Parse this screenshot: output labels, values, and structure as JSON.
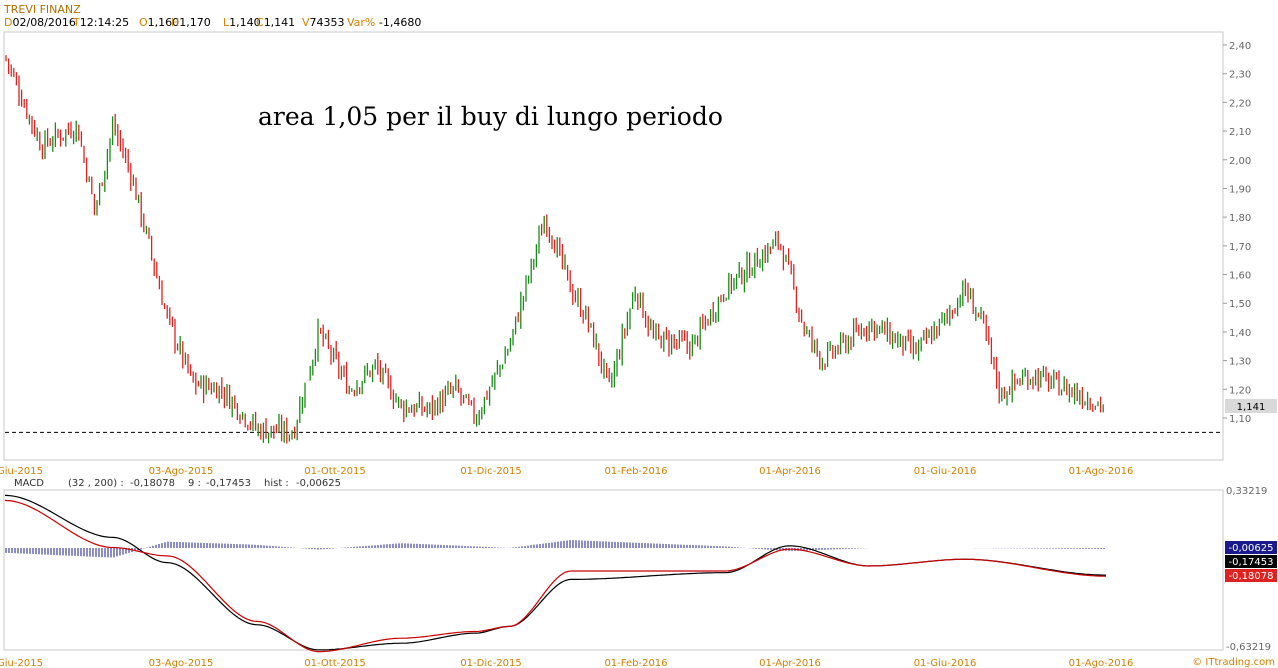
{
  "header": {
    "instrument": "TREVI FINANZ",
    "fields": [
      {
        "k": "D",
        "v": "02/08/2016"
      },
      {
        "k": "T",
        "v": "12:14:25"
      },
      {
        "k": "O",
        "v": "1,160"
      },
      {
        "k": "H",
        "v": "1,170"
      },
      {
        "k": "L",
        "v": "1,140"
      },
      {
        "k": "C",
        "v": "1,141"
      },
      {
        "k": "V",
        "v": "74353"
      },
      {
        "k": "Var%",
        "v": "-1,4680"
      }
    ]
  },
  "annotation": "area 1,05 per il buy di lungo periodo",
  "colors": {
    "up": "#1a8a1a",
    "down": "#dd2222",
    "histogram": "#1a1a8c",
    "macd_line": "#cc0000",
    "signal_line": "#000000",
    "axis_date": "#d08000"
  },
  "x_axis_labels": [
    "-Giu-2015",
    "03-Ago-2015",
    "01-Ott-2015",
    "01-Dic-2015",
    "01-Feb-2016",
    "01-Apr-2016",
    "01-Giu-2016",
    "01-Ago-2016"
  ],
  "price_axis_ticks": [
    "2,40",
    "2,30",
    "2,20",
    "2,10",
    "2,00",
    "1,90",
    "1,80",
    "1,70",
    "1,60",
    "1,50",
    "1,40",
    "1,30",
    "1,20",
    "1,10"
  ],
  "last_price_label": "1,141",
  "support_line_level": 1.05,
  "macd_header": {
    "name": "MACD",
    "params": "(32 , 200) :",
    "macd_value": "-0,18078",
    "signal_label": "9 :",
    "signal_value": "-0,17453",
    "hist_label": "hist :",
    "hist_value": "-0,00625"
  },
  "macd_axis": {
    "top": "0,33219",
    "bottom": "-0,63219"
  },
  "macd_badges": [
    {
      "text": "-0,00625",
      "color": "#1a1a8c"
    },
    {
      "text": "-0,17453",
      "color": "#000000"
    },
    {
      "text": "-0,18078",
      "color": "#dd2222"
    }
  ],
  "watermark": "© ITtrading.com",
  "chart_data": {
    "type": "line",
    "title": "TREVI FINANZ",
    "ylim": [
      1.01,
      2.42
    ],
    "price_anchors": {
      "x": [
        "2015-06-01",
        "2015-06-15",
        "2015-06-29",
        "2015-07-06",
        "2015-07-13",
        "2015-07-20",
        "2015-08-03",
        "2015-08-13",
        "2015-08-24",
        "2015-09-07",
        "2015-09-21",
        "2015-10-01",
        "2015-10-13",
        "2015-10-23",
        "2015-11-02",
        "2015-11-13",
        "2015-11-23",
        "2015-12-01",
        "2015-12-14",
        "2015-12-28",
        "2016-01-07",
        "2016-01-13",
        "2016-01-22",
        "2016-02-01",
        "2016-02-08",
        "2016-02-23",
        "2016-03-07",
        "2016-03-28",
        "2016-04-01",
        "2016-04-07",
        "2016-04-14",
        "2016-05-02",
        "2016-05-20",
        "2016-06-01",
        "2016-06-08",
        "2016-06-15",
        "2016-06-22",
        "2016-06-27",
        "2016-07-04",
        "2016-07-18",
        "2016-08-02"
      ],
      "close": [
        2.36,
        2.05,
        2.12,
        1.82,
        2.12,
        1.95,
        1.45,
        1.22,
        1.2,
        1.06,
        1.05,
        1.4,
        1.2,
        1.28,
        1.14,
        1.13,
        1.2,
        1.1,
        1.35,
        1.8,
        1.55,
        1.45,
        1.2,
        1.55,
        1.38,
        1.35,
        1.55,
        1.72,
        1.6,
        1.4,
        1.3,
        1.43,
        1.33,
        1.45,
        1.55,
        1.43,
        1.18,
        1.22,
        1.25,
        1.2,
        1.141
      ]
    },
    "macd_range": [
      -0.63219,
      0.33219
    ],
    "series": [
      {
        "name": "MACD",
        "x": [
          "2015-06-01",
          "2015-07-13",
          "2015-08-03",
          "2015-09-07",
          "2015-10-01",
          "2015-11-02",
          "2015-12-01",
          "2015-12-14",
          "2016-01-07",
          "2016-03-07",
          "2016-04-01",
          "2016-05-02",
          "2016-06-08",
          "2016-08-02"
        ],
        "values": [
          0.27,
          -0.01,
          -0.06,
          -0.45,
          -0.63,
          -0.55,
          -0.51,
          -0.48,
          -0.15,
          -0.15,
          -0.02,
          -0.12,
          -0.08,
          -0.18078
        ]
      },
      {
        "name": "Signal",
        "x": [
          "2015-06-01",
          "2015-07-13",
          "2015-08-03",
          "2015-09-07",
          "2015-10-01",
          "2015-11-02",
          "2015-12-01",
          "2015-12-14",
          "2016-01-07",
          "2016-03-07",
          "2016-04-01",
          "2016-05-02",
          "2016-06-08",
          "2016-08-02"
        ],
        "values": [
          0.3,
          0.05,
          -0.1,
          -0.47,
          -0.62,
          -0.58,
          -0.52,
          -0.48,
          -0.2,
          -0.16,
          -0.0,
          -0.12,
          -0.08,
          -0.17453
        ]
      },
      {
        "name": "hist",
        "x": [
          "2015-06-01",
          "2015-07-13",
          "2015-08-03",
          "2015-09-07",
          "2015-10-01",
          "2015-11-02",
          "2015-12-01",
          "2015-12-14",
          "2016-01-07",
          "2016-03-07",
          "2016-04-01",
          "2016-05-02",
          "2016-06-08",
          "2016-08-02"
        ],
        "values": [
          -0.03,
          -0.06,
          0.04,
          0.02,
          -0.01,
          0.03,
          0.01,
          0.0,
          0.05,
          0.01,
          -0.02,
          0.0,
          0.0,
          -0.00625
        ]
      }
    ]
  }
}
